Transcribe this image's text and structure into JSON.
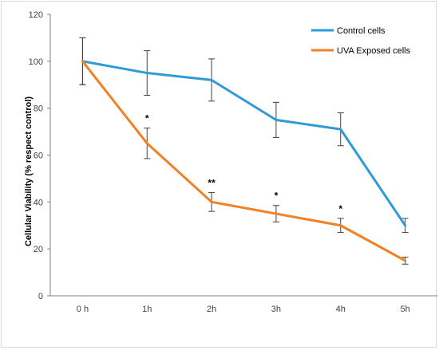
{
  "chart_data": {
    "type": "line",
    "categories": [
      "0 h",
      "1h",
      "2h",
      "3h",
      "4h",
      "5h"
    ],
    "ylabel": "Cellular Viability (% respect control)",
    "xlabel": "",
    "ylim": [
      0,
      120
    ],
    "yticks": [
      "0",
      "20",
      "40",
      "60",
      "80",
      "100",
      "120"
    ],
    "grid": false,
    "legend_position": "top-right",
    "series": [
      {
        "name": "Control cells",
        "color": "#2e9bd6",
        "values": [
          100,
          95,
          92,
          75,
          71,
          30
        ],
        "errors": [
          10,
          9.5,
          9,
          7.5,
          7,
          3
        ]
      },
      {
        "name": "UVA Exposed cells",
        "color": "#f28024",
        "values": [
          100,
          65,
          40,
          35,
          30,
          15
        ],
        "errors": [
          10,
          6.5,
          4,
          3.5,
          3,
          1.5
        ]
      }
    ],
    "annotations": [
      {
        "category": "1h",
        "text": "*"
      },
      {
        "category": "2h",
        "text": "**"
      },
      {
        "category": "3h",
        "text": "*"
      },
      {
        "category": "4h",
        "text": "*"
      }
    ]
  }
}
